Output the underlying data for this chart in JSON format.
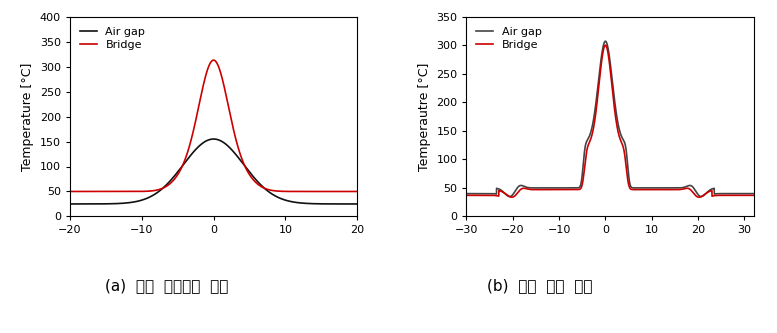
{
  "plot_a": {
    "title": "(a)  동일  소비전력  비교",
    "ylabel": "Temperature [°C]",
    "xlim": [
      -20,
      20
    ],
    "ylim": [
      0,
      400
    ],
    "yticks": [
      0,
      50,
      100,
      150,
      200,
      250,
      300,
      350,
      400
    ],
    "xticks": [
      -20,
      -10,
      0,
      10,
      20
    ],
    "air_gap_color": "#111111",
    "bridge_color": "#cc0000",
    "legend_labels": [
      "Air gap",
      "Bridge"
    ]
  },
  "plot_b": {
    "title": "(b)  동일  온도  비교",
    "ylabel": "Temperautre [°C]",
    "xlim": [
      -30,
      32
    ],
    "ylim": [
      0,
      350
    ],
    "yticks": [
      0,
      50,
      100,
      150,
      200,
      250,
      300,
      350
    ],
    "xticks": [
      -30,
      -20,
      -10,
      0,
      10,
      20,
      30
    ],
    "air_gap_color": "#444444",
    "bridge_color": "#cc0000",
    "legend_labels": [
      "Air gap",
      "Bridge"
    ]
  },
  "fig_bg": "#ffffff",
  "title_fontsize": 11,
  "label_fontsize": 9,
  "legend_fontsize": 8,
  "tick_fontsize": 8,
  "line_width": 1.2
}
